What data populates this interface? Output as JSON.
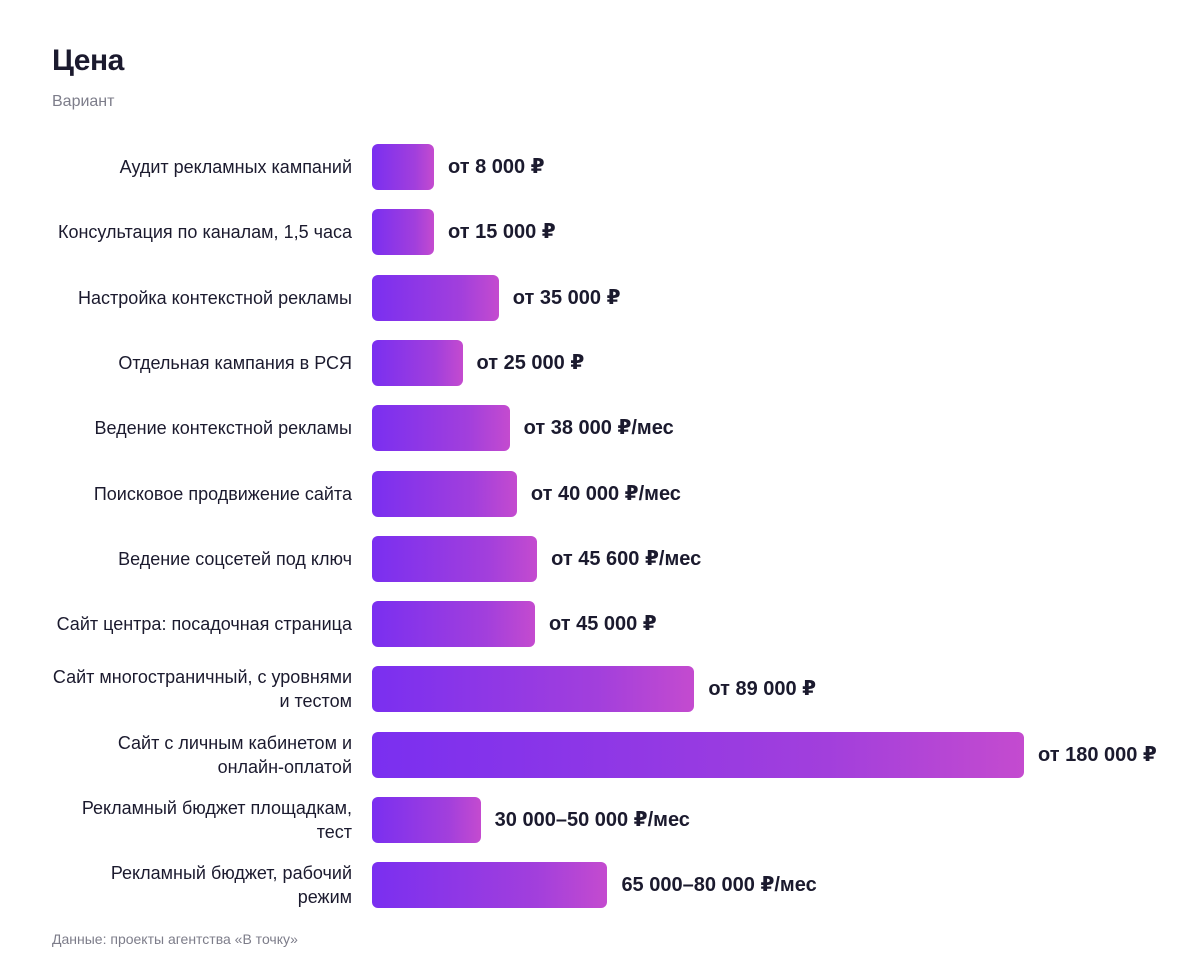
{
  "chart_data": {
    "type": "bar",
    "orientation": "horizontal",
    "title": "Цена",
    "subtitle": "Вариант",
    "source": "Данные: проекты агентства «В точку»",
    "xlim": [
      0,
      180000
    ],
    "grid": false,
    "colors": {
      "bar_start": "#7a2ff0",
      "bar_end": "#c44bcf",
      "text": "#1b1a2e",
      "muted": "#7d7d8a"
    },
    "categories": [
      "Аудит рекламных кампаний",
      "Консультация по каналам, 1,5 часа",
      "Настройка контекстной рекламы",
      "Отдельная кампания в РСЯ",
      "Ведение контекстной рекламы",
      "Поисковое продвижение сайта",
      "Ведение соцсетей под ключ",
      "Сайт центра: посадочная страница",
      "Сайт многостраничный, с уровнями и тестом",
      "Сайт с личным кабинетом и онлайн-оплатой",
      "Рекламный бюджет площадкам, тест",
      "Рекламный бюджет, рабочий режим"
    ],
    "values": [
      8000,
      15000,
      35000,
      25000,
      38000,
      40000,
      45600,
      45000,
      89000,
      180000,
      30000,
      65000
    ],
    "value_labels": [
      "от 8 000 ₽",
      "от 15 000 ₽",
      "от 35 000 ₽",
      "от 25 000 ₽",
      "от 38 000 ₽/мес",
      "от 40 000 ₽/мес",
      "от 45 600 ₽/мес",
      "от 45 000 ₽",
      "от 89 000 ₽",
      "от 180 000 ₽",
      "30 000–50 000 ₽/мес",
      "65 000–80 000 ₽/мес"
    ]
  }
}
